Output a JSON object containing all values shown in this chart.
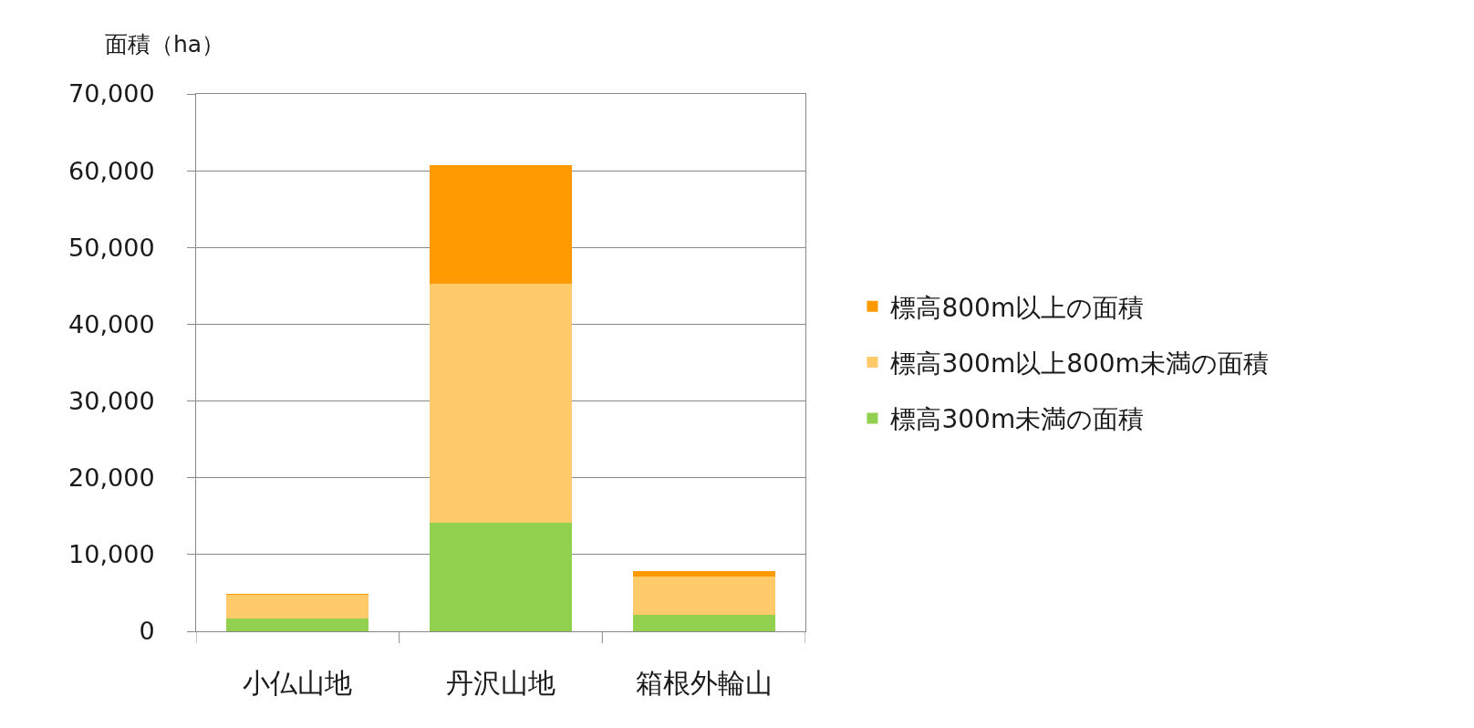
{
  "chart_data": {
    "type": "bar",
    "stacked": true,
    "ylabel": "面積（ha）",
    "categories": [
      "小仏山地",
      "丹沢山地",
      "箱根外輪山"
    ],
    "series": [
      {
        "name": "標高300m未満の面積",
        "color": "#92d050",
        "values": [
          1700,
          14100,
          2100
        ]
      },
      {
        "name": "標高300m以上800m未満の面積",
        "color": "#ffca69",
        "values": [
          3100,
          31200,
          5000
        ]
      },
      {
        "name": "標高800m以上の面積",
        "color": "#ff9900",
        "values": [
          100,
          15400,
          700
        ]
      }
    ],
    "ylim": [
      0,
      70000
    ],
    "yticks": [
      0,
      {
        "value": 10000,
        "label": "10,000"
      },
      {
        "value": 20000,
        "label": "20,000"
      },
      {
        "value": 30000,
        "label": "30,000"
      },
      {
        "value": 40000,
        "label": "40,000"
      },
      {
        "value": 50000,
        "label": "50,000"
      },
      {
        "value": 60000,
        "label": "60,000"
      },
      {
        "value": 70000,
        "label": "70,000"
      }
    ],
    "grid": "y",
    "legend": "right"
  }
}
